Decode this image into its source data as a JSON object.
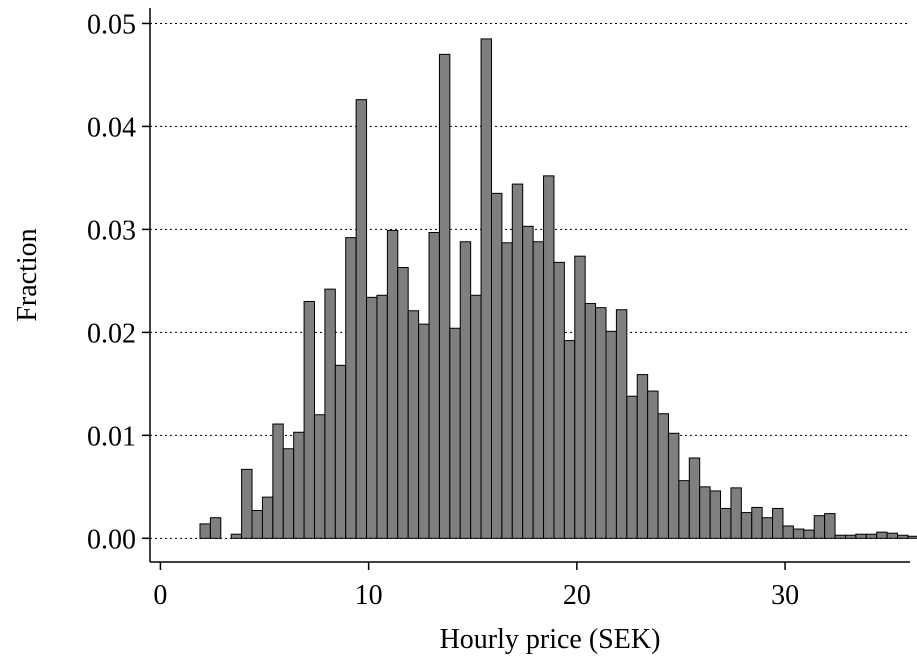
{
  "chart_data": {
    "type": "bar",
    "title": "",
    "xlabel": "Hourly price (SEK)",
    "ylabel": "Fraction",
    "xlim": [
      -0.5,
      36
    ],
    "ylim": [
      -0.0023,
      0.0515
    ],
    "xticks": [
      0,
      10,
      20,
      30
    ],
    "xtick_labels": [
      "0",
      "10",
      "20",
      "30"
    ],
    "yticks": [
      0,
      0.01,
      0.02,
      0.03,
      0.04,
      0.05
    ],
    "ytick_labels": [
      "0.00",
      "0.01",
      "0.02",
      "0.03",
      "0.04",
      "0.05"
    ],
    "grid": "horizontal dotted",
    "bar_color": "#7f7f7f",
    "bin_start": 1.9,
    "bin_width": 0.5,
    "values": [
      0.0014,
      0.002,
      0.0,
      0.0004,
      0.0067,
      0.0027,
      0.004,
      0.0111,
      0.0087,
      0.0103,
      0.023,
      0.012,
      0.0242,
      0.0168,
      0.0292,
      0.0426,
      0.0234,
      0.0236,
      0.0299,
      0.0263,
      0.0221,
      0.0208,
      0.0297,
      0.047,
      0.0204,
      0.0288,
      0.0236,
      0.0485,
      0.0335,
      0.0287,
      0.0344,
      0.0303,
      0.0288,
      0.0352,
      0.0268,
      0.0192,
      0.0274,
      0.0228,
      0.0224,
      0.0201,
      0.0222,
      0.0138,
      0.0159,
      0.0143,
      0.0121,
      0.0102,
      0.0056,
      0.0078,
      0.005,
      0.0046,
      0.0029,
      0.0049,
      0.0025,
      0.003,
      0.002,
      0.0029,
      0.0012,
      0.0009,
      0.0008,
      0.0022,
      0.0024,
      0.0003,
      0.0003,
      0.0004,
      0.0004,
      0.0006,
      0.0005,
      0.0003,
      0.0002,
      0.0002
    ]
  }
}
